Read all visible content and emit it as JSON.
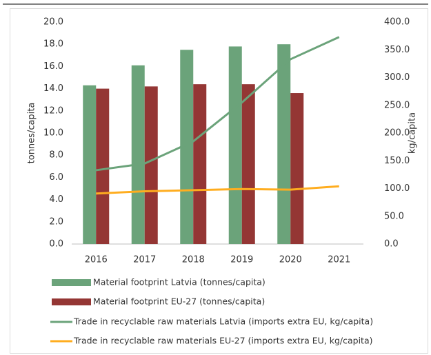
{
  "chart_data": {
    "type": "bar",
    "categories": [
      "2016",
      "2017",
      "2018",
      "2019",
      "2020",
      "2021"
    ],
    "series": [
      {
        "name": "Material footprint Latvia (tonnes/capita)",
        "type": "bar",
        "color": "#6ba37a",
        "values": [
          14.3,
          16.1,
          17.5,
          17.8,
          18.0,
          null
        ]
      },
      {
        "name": "Material footprint EU-27 (tonnes/capita)",
        "type": "bar",
        "color": "#943634",
        "values": [
          14.0,
          14.2,
          14.4,
          14.4,
          13.6,
          null
        ]
      },
      {
        "name": "Trade in recyclable raw materials Latvia (imports extra EU, kg/capita)",
        "type": "line",
        "axis": "y2",
        "color": "#6ba37a",
        "values": [
          133,
          145,
          185,
          255,
          333,
          373
        ]
      },
      {
        "name": "Trade in recyclable raw materials EU-27 (imports extra EU, kg/capita)",
        "type": "line",
        "axis": "y2",
        "color": "#ffad1f",
        "values": [
          91,
          95,
          97,
          99,
          98,
          104
        ]
      }
    ],
    "ylabel": "tonnes/capita",
    "y2label": "kg/capita",
    "ylim": [
      0,
      20
    ],
    "yticks": [
      {
        "value": 0,
        "label": "0.0"
      },
      {
        "value": 2,
        "label": "2.0"
      },
      {
        "value": 4,
        "label": "4.0"
      },
      {
        "value": 6,
        "label": "6.0"
      },
      {
        "value": 8,
        "label": "8.0"
      },
      {
        "value": 10,
        "label": "10.0"
      },
      {
        "value": 12,
        "label": "12.0"
      },
      {
        "value": 14,
        "label": "14.0"
      },
      {
        "value": 16,
        "label": "16.0"
      },
      {
        "value": 18,
        "label": "18.0"
      },
      {
        "value": 20,
        "label": "20.0"
      }
    ],
    "y2lim": [
      0,
      400
    ],
    "y2ticks": [
      {
        "value": 0,
        "label": "0.0"
      },
      {
        "value": 50,
        "label": "50.0"
      },
      {
        "value": 100,
        "label": "100.0"
      },
      {
        "value": 150,
        "label": "150.0"
      },
      {
        "value": 200,
        "label": "200.0"
      },
      {
        "value": 250,
        "label": "250.0"
      },
      {
        "value": 300,
        "label": "300.0"
      },
      {
        "value": 350,
        "label": "350.0"
      },
      {
        "value": 400,
        "label": "400.0"
      }
    ],
    "grid": false,
    "legend": "bottom"
  }
}
